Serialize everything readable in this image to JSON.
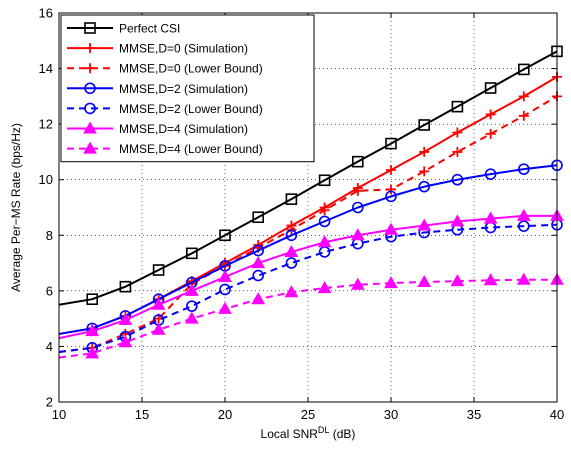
{
  "chart_data": {
    "type": "line",
    "xlabel_main": "Local SNR",
    "xlabel_sup": "DL",
    "xlabel_unit": " (dB)",
    "ylabel": "Average Per−MS Rate (bps/Hz)",
    "xlim": [
      10,
      40
    ],
    "ylim": [
      2,
      16
    ],
    "xticks": [
      10,
      15,
      20,
      25,
      30,
      35,
      40
    ],
    "yticks": [
      2,
      4,
      6,
      8,
      10,
      12,
      14,
      16
    ],
    "grid": true,
    "legend_position": "top-left",
    "x_line": [
      10,
      12,
      14,
      16,
      18,
      20,
      22,
      24,
      26,
      28,
      30,
      32,
      34,
      36,
      38,
      40
    ],
    "x_markers": [
      12,
      14,
      16,
      18,
      20,
      22,
      24,
      26,
      28,
      30,
      32,
      34,
      36,
      38,
      40
    ],
    "series": [
      {
        "name": "Perfect CSI",
        "color": "#000000",
        "dash": "solid",
        "marker": "square",
        "values": [
          5.5,
          5.7,
          6.15,
          6.75,
          7.35,
          8.0,
          8.65,
          9.3,
          9.98,
          10.65,
          11.3,
          11.97,
          12.63,
          13.3,
          13.97,
          14.62
        ]
      },
      {
        "name": "MMSE,D=0 (Simulation)",
        "color": "#ff0000",
        "dash": "solid",
        "marker": "plus",
        "values": [
          4.45,
          4.65,
          5.1,
          5.7,
          6.35,
          7.0,
          7.65,
          8.35,
          9.0,
          9.7,
          10.35,
          11.0,
          11.7,
          12.35,
          13.0,
          13.7
        ]
      },
      {
        "name": "MMSE,D=0 (Lower Bound)",
        "color": "#ff0000",
        "dash": "dashed",
        "marker": "plus",
        "values": [
          3.8,
          3.95,
          4.45,
          5.0,
          6.25,
          6.9,
          7.55,
          8.2,
          8.9,
          9.6,
          9.65,
          10.3,
          11.0,
          11.65,
          12.3,
          13.0
        ]
      },
      {
        "name": "MMSE,D=2 (Simulation)",
        "color": "#0000ff",
        "dash": "solid",
        "marker": "circle",
        "values": [
          4.45,
          4.65,
          5.1,
          5.7,
          6.3,
          6.9,
          7.45,
          8.0,
          8.5,
          9.0,
          9.4,
          9.75,
          10.0,
          10.2,
          10.38,
          10.52
        ]
      },
      {
        "name": "MMSE,D=2 (Lower Bound)",
        "color": "#0000ff",
        "dash": "dashed",
        "marker": "circle",
        "values": [
          3.8,
          3.95,
          4.35,
          4.95,
          5.45,
          6.05,
          6.55,
          7.0,
          7.4,
          7.7,
          7.95,
          8.1,
          8.2,
          8.28,
          8.33,
          8.38
        ]
      },
      {
        "name": "MMSE,D=4 (Simulation)",
        "color": "#ff00ff",
        "dash": "solid",
        "marker": "triangle",
        "values": [
          4.3,
          4.55,
          4.95,
          5.5,
          6.0,
          6.5,
          7.0,
          7.4,
          7.75,
          8.0,
          8.2,
          8.35,
          8.5,
          8.6,
          8.7,
          8.7
        ]
      },
      {
        "name": "MMSE,D=4 (Lower Bound)",
        "color": "#ff00ff",
        "dash": "dashed",
        "marker": "triangle",
        "values": [
          3.6,
          3.75,
          4.15,
          4.6,
          5.0,
          5.35,
          5.7,
          5.95,
          6.1,
          6.22,
          6.28,
          6.32,
          6.35,
          6.38,
          6.4,
          6.4
        ]
      }
    ]
  }
}
